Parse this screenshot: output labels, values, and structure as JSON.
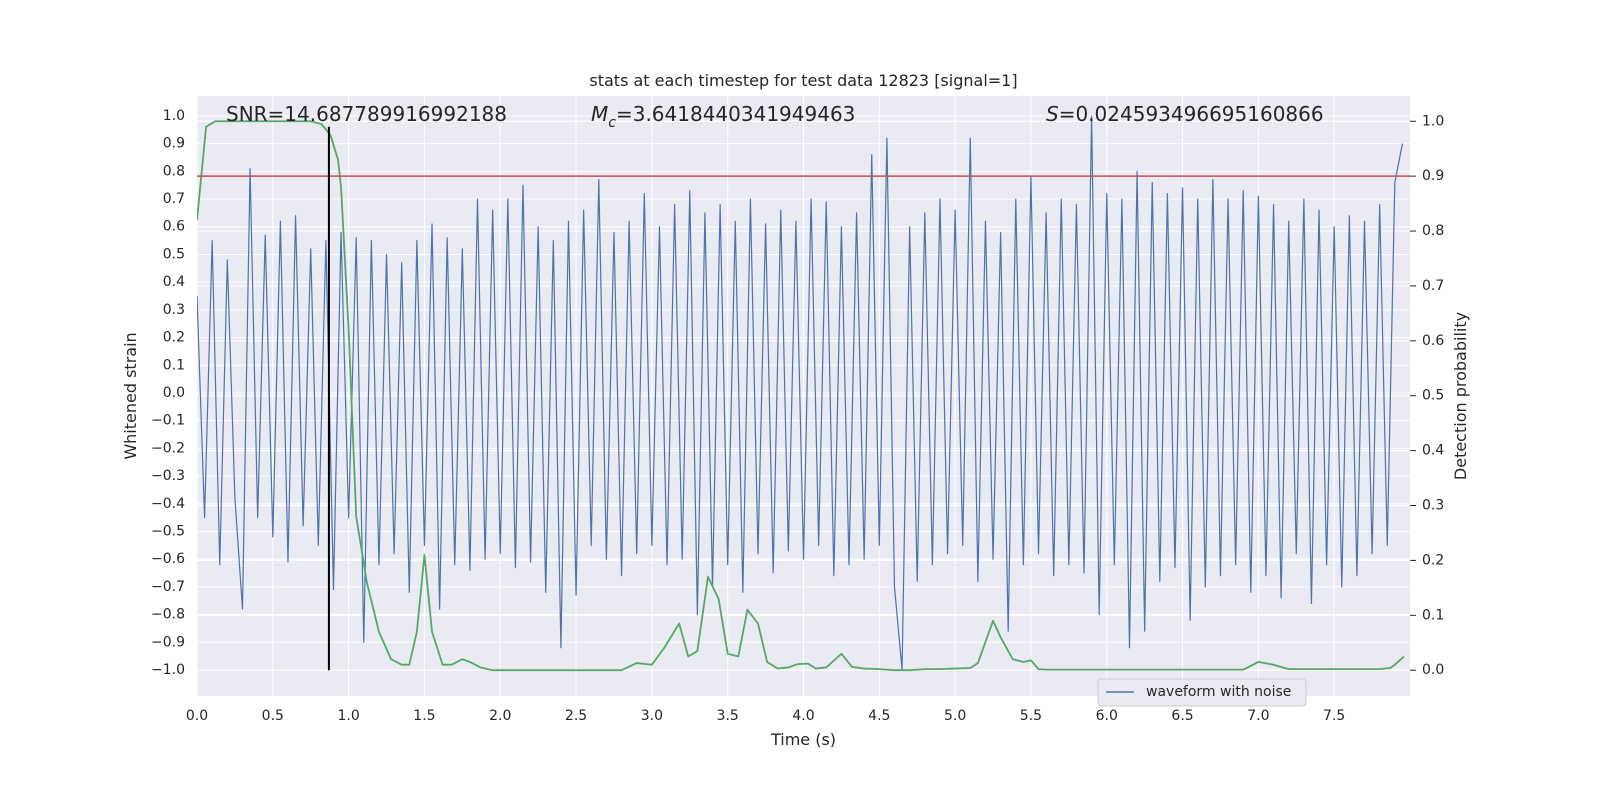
{
  "chart_data": {
    "type": "line",
    "title": "stats at each timestep for test data 12823 [signal=1]",
    "xlabel": "Time (s)",
    "ylabel": "Whitened strain",
    "y2label": "Detection probability",
    "annotations": [
      {
        "text": "SNR=14.687789916992188"
      },
      {
        "symbol": "M",
        "subscript": "c",
        "text": "=3.6418440341949463"
      },
      {
        "symbol": "S",
        "text": "=0.024593496695160866"
      }
    ],
    "xlim": [
      0,
      8
    ],
    "ylim": [
      -1.094,
      1.072
    ],
    "y2lim": [
      -0.047,
      1.046
    ],
    "grid": true,
    "legend": "lower right",
    "xticks": [
      {
        "value": 0,
        "label": "0.0"
      },
      {
        "value": 0.5,
        "label": "0.5"
      },
      {
        "value": 1,
        "label": "1.0"
      },
      {
        "value": 1.5,
        "label": "1.5"
      },
      {
        "value": 2,
        "label": "2.0"
      },
      {
        "value": 2.5,
        "label": "2.5"
      },
      {
        "value": 3,
        "label": "3.0"
      },
      {
        "value": 3.5,
        "label": "3.5"
      },
      {
        "value": 4,
        "label": "4.0"
      },
      {
        "value": 4.5,
        "label": "4.5"
      },
      {
        "value": 5,
        "label": "5.0"
      },
      {
        "value": 5.5,
        "label": "5.5"
      },
      {
        "value": 6,
        "label": "6.0"
      },
      {
        "value": 6.5,
        "label": "6.5"
      },
      {
        "value": 7,
        "label": "7.0"
      },
      {
        "value": 7.5,
        "label": "7.5"
      }
    ],
    "yticks": [
      {
        "value": -1,
        "label": "−1.0"
      },
      {
        "value": -0.9,
        "label": "−0.9"
      },
      {
        "value": -0.8,
        "label": "−0.8"
      },
      {
        "value": -0.7,
        "label": "−0.7"
      },
      {
        "value": -0.6,
        "label": "−0.6"
      },
      {
        "value": -0.5,
        "label": "−0.5"
      },
      {
        "value": -0.4,
        "label": "−0.4"
      },
      {
        "value": -0.3,
        "label": "−0.3"
      },
      {
        "value": -0.2,
        "label": "−0.2"
      },
      {
        "value": -0.1,
        "label": "−0.1"
      },
      {
        "value": 0,
        "label": "0.0"
      },
      {
        "value": 0.1,
        "label": "0.1"
      },
      {
        "value": 0.2,
        "label": "0.2"
      },
      {
        "value": 0.3,
        "label": "0.3"
      },
      {
        "value": 0.4,
        "label": "0.4"
      },
      {
        "value": 0.5,
        "label": "0.5"
      },
      {
        "value": 0.6,
        "label": "0.6"
      },
      {
        "value": 0.7,
        "label": "0.7"
      },
      {
        "value": 0.8,
        "label": "0.8"
      },
      {
        "value": 0.9,
        "label": "0.9"
      },
      {
        "value": 1,
        "label": "1.0"
      }
    ],
    "y2ticks": [
      {
        "value": 0,
        "label": "0.0"
      },
      {
        "value": 0.1,
        "label": "0.1"
      },
      {
        "value": 0.2,
        "label": "0.2"
      },
      {
        "value": 0.3,
        "label": "0.3"
      },
      {
        "value": 0.4,
        "label": "0.4"
      },
      {
        "value": 0.5,
        "label": "0.5"
      },
      {
        "value": 0.6,
        "label": "0.6"
      },
      {
        "value": 0.7,
        "label": "0.7"
      },
      {
        "value": 0.8,
        "label": "0.8"
      },
      {
        "value": 0.9,
        "label": "0.9"
      },
      {
        "value": 1,
        "label": "1.0"
      }
    ],
    "hlines": [
      {
        "value": 0.9,
        "axis": "y2",
        "color": "#c44e52"
      }
    ],
    "vlines": [
      {
        "value": 0.87,
        "ymin": 0,
        "ymax": 0.99,
        "axis": "y2",
        "color": "#000000"
      }
    ],
    "series": [
      {
        "name": "waveform with noise",
        "color": "#4c72b0",
        "x": [
          0,
          0.05,
          0.1,
          0.15,
          0.2,
          0.25,
          0.3,
          0.35,
          0.4,
          0.45,
          0.5,
          0.55,
          0.6,
          0.65,
          0.7,
          0.75,
          0.8,
          0.85,
          0.9,
          0.95,
          1,
          1.05,
          1.1,
          1.15,
          1.2,
          1.25,
          1.3,
          1.35,
          1.4,
          1.45,
          1.5,
          1.55,
          1.6,
          1.65,
          1.7,
          1.75,
          1.8,
          1.85,
          1.9,
          1.95,
          2,
          2.05,
          2.1,
          2.15,
          2.2,
          2.25,
          2.3,
          2.35,
          2.4,
          2.45,
          2.5,
          2.55,
          2.6,
          2.65,
          2.7,
          2.75,
          2.8,
          2.85,
          2.9,
          2.95,
          3,
          3.05,
          3.1,
          3.15,
          3.2,
          3.25,
          3.3,
          3.35,
          3.4,
          3.45,
          3.5,
          3.55,
          3.6,
          3.65,
          3.7,
          3.75,
          3.8,
          3.85,
          3.9,
          3.95,
          4,
          4.05,
          4.1,
          4.15,
          4.2,
          4.25,
          4.3,
          4.35,
          4.4,
          4.45,
          4.5,
          4.55,
          4.6,
          4.65,
          4.7,
          4.75,
          4.8,
          4.85,
          4.9,
          4.95,
          5,
          5.05,
          5.1,
          5.15,
          5.2,
          5.25,
          5.3,
          5.35,
          5.4,
          5.45,
          5.5,
          5.55,
          5.6,
          5.65,
          5.7,
          5.75,
          5.8,
          5.85,
          5.9,
          5.95,
          6,
          6.05,
          6.1,
          6.15,
          6.2,
          6.25,
          6.3,
          6.35,
          6.4,
          6.45,
          6.5,
          6.55,
          6.6,
          6.65,
          6.7,
          6.75,
          6.8,
          6.85,
          6.9,
          6.95,
          7,
          7.05,
          7.1,
          7.15,
          7.2,
          7.25,
          7.3,
          7.35,
          7.4,
          7.45,
          7.5,
          7.55,
          7.6,
          7.65,
          7.7,
          7.75,
          7.8,
          7.85,
          7.9,
          7.95
        ],
        "values": [
          0.35,
          -0.45,
          0.55,
          -0.62,
          0.48,
          -0.38,
          -0.78,
          0.81,
          -0.45,
          0.57,
          -0.52,
          0.62,
          -0.61,
          0.64,
          -0.48,
          0.52,
          -0.55,
          0.55,
          -0.71,
          0.58,
          -0.45,
          0.56,
          -0.9,
          0.55,
          -0.62,
          0.5,
          -0.58,
          0.47,
          -0.72,
          0.55,
          -0.55,
          0.61,
          -0.78,
          0.56,
          -0.62,
          0.52,
          -0.64,
          0.7,
          -0.6,
          0.66,
          -0.58,
          0.7,
          -0.63,
          0.75,
          -0.61,
          0.6,
          -0.72,
          0.55,
          -0.92,
          0.62,
          -0.73,
          0.66,
          -0.55,
          0.77,
          -0.6,
          0.58,
          -0.66,
          0.62,
          -0.58,
          0.72,
          -0.55,
          0.6,
          -0.62,
          0.68,
          -0.6,
          0.73,
          -0.8,
          0.65,
          -0.7,
          0.68,
          -0.62,
          0.62,
          -0.72,
          0.7,
          -0.58,
          0.61,
          -0.65,
          0.66,
          -0.57,
          0.62,
          -0.6,
          0.7,
          -0.55,
          0.69,
          -0.66,
          0.6,
          -0.62,
          0.65,
          -0.6,
          0.86,
          -0.55,
          0.92,
          -0.7,
          -1.0,
          0.6,
          -0.68,
          0.65,
          -0.62,
          0.7,
          -0.58,
          0.66,
          -0.55,
          0.92,
          -0.68,
          0.62,
          -0.6,
          0.58,
          -0.86,
          0.7,
          -0.62,
          0.78,
          -0.58,
          0.65,
          -0.66,
          0.7,
          -0.62,
          0.68,
          -0.65,
          1.0,
          -0.8,
          0.72,
          -0.62,
          0.7,
          -0.92,
          0.8,
          -0.86,
          0.76,
          -0.68,
          0.72,
          -0.63,
          0.74,
          -0.82,
          0.7,
          -0.7,
          0.77,
          -0.66,
          0.7,
          -0.62,
          0.73,
          -0.72,
          0.71,
          -0.66,
          0.68,
          -0.74,
          0.62,
          -0.58,
          0.7,
          -0.76,
          0.66,
          -0.62,
          0.6,
          -0.7,
          0.64,
          -0.66,
          0.62,
          -0.58,
          0.68,
          -0.55,
          0.76,
          0.9
        ]
      },
      {
        "color": "#55a868",
        "axis": "y2",
        "x": [
          0,
          0.06,
          0.12,
          0.25,
          0.5,
          0.75,
          0.82,
          0.88,
          0.93,
          0.95,
          1,
          1.05,
          1.12,
          1.2,
          1.28,
          1.35,
          1.4,
          1.45,
          1.5,
          1.55,
          1.62,
          1.68,
          1.75,
          1.8,
          1.87,
          1.95,
          2.2,
          2.5,
          2.8,
          2.9,
          3,
          3.08,
          3.18,
          3.24,
          3.3,
          3.37,
          3.44,
          3.5,
          3.57,
          3.63,
          3.7,
          3.76,
          3.83,
          3.9,
          3.96,
          4.03,
          4.08,
          4.15,
          4.25,
          4.32,
          4.4,
          4.5,
          4.6,
          4.7,
          4.8,
          4.9,
          5,
          5.1,
          5.15,
          5.25,
          5.3,
          5.38,
          5.45,
          5.5,
          5.55,
          5.6,
          6.2,
          6.9,
          7,
          7.1,
          7.2,
          7.8,
          7.87,
          7.9,
          7.96
        ],
        "values": [
          0.82,
          0.99,
          1.0,
          1.0,
          1.0,
          1.0,
          0.995,
          0.975,
          0.93,
          0.88,
          0.62,
          0.28,
          0.16,
          0.07,
          0.02,
          0.01,
          0.01,
          0.07,
          0.21,
          0.07,
          0.01,
          0.01,
          0.02,
          0.015,
          0.005,
          0.0,
          0.0,
          0.0,
          0.0,
          0.013,
          0.01,
          0.04,
          0.085,
          0.025,
          0.035,
          0.17,
          0.13,
          0.03,
          0.025,
          0.11,
          0.085,
          0.015,
          0.003,
          0.005,
          0.011,
          0.012,
          0.003,
          0.005,
          0.03,
          0.006,
          0.003,
          0.002,
          0.0,
          0.0,
          0.002,
          0.002,
          0.003,
          0.004,
          0.013,
          0.09,
          0.06,
          0.02,
          0.015,
          0.018,
          0.002,
          0.001,
          0.001,
          0.001,
          0.015,
          0.01,
          0.002,
          0.002,
          0.004,
          0.01,
          0.025
        ]
      }
    ]
  }
}
